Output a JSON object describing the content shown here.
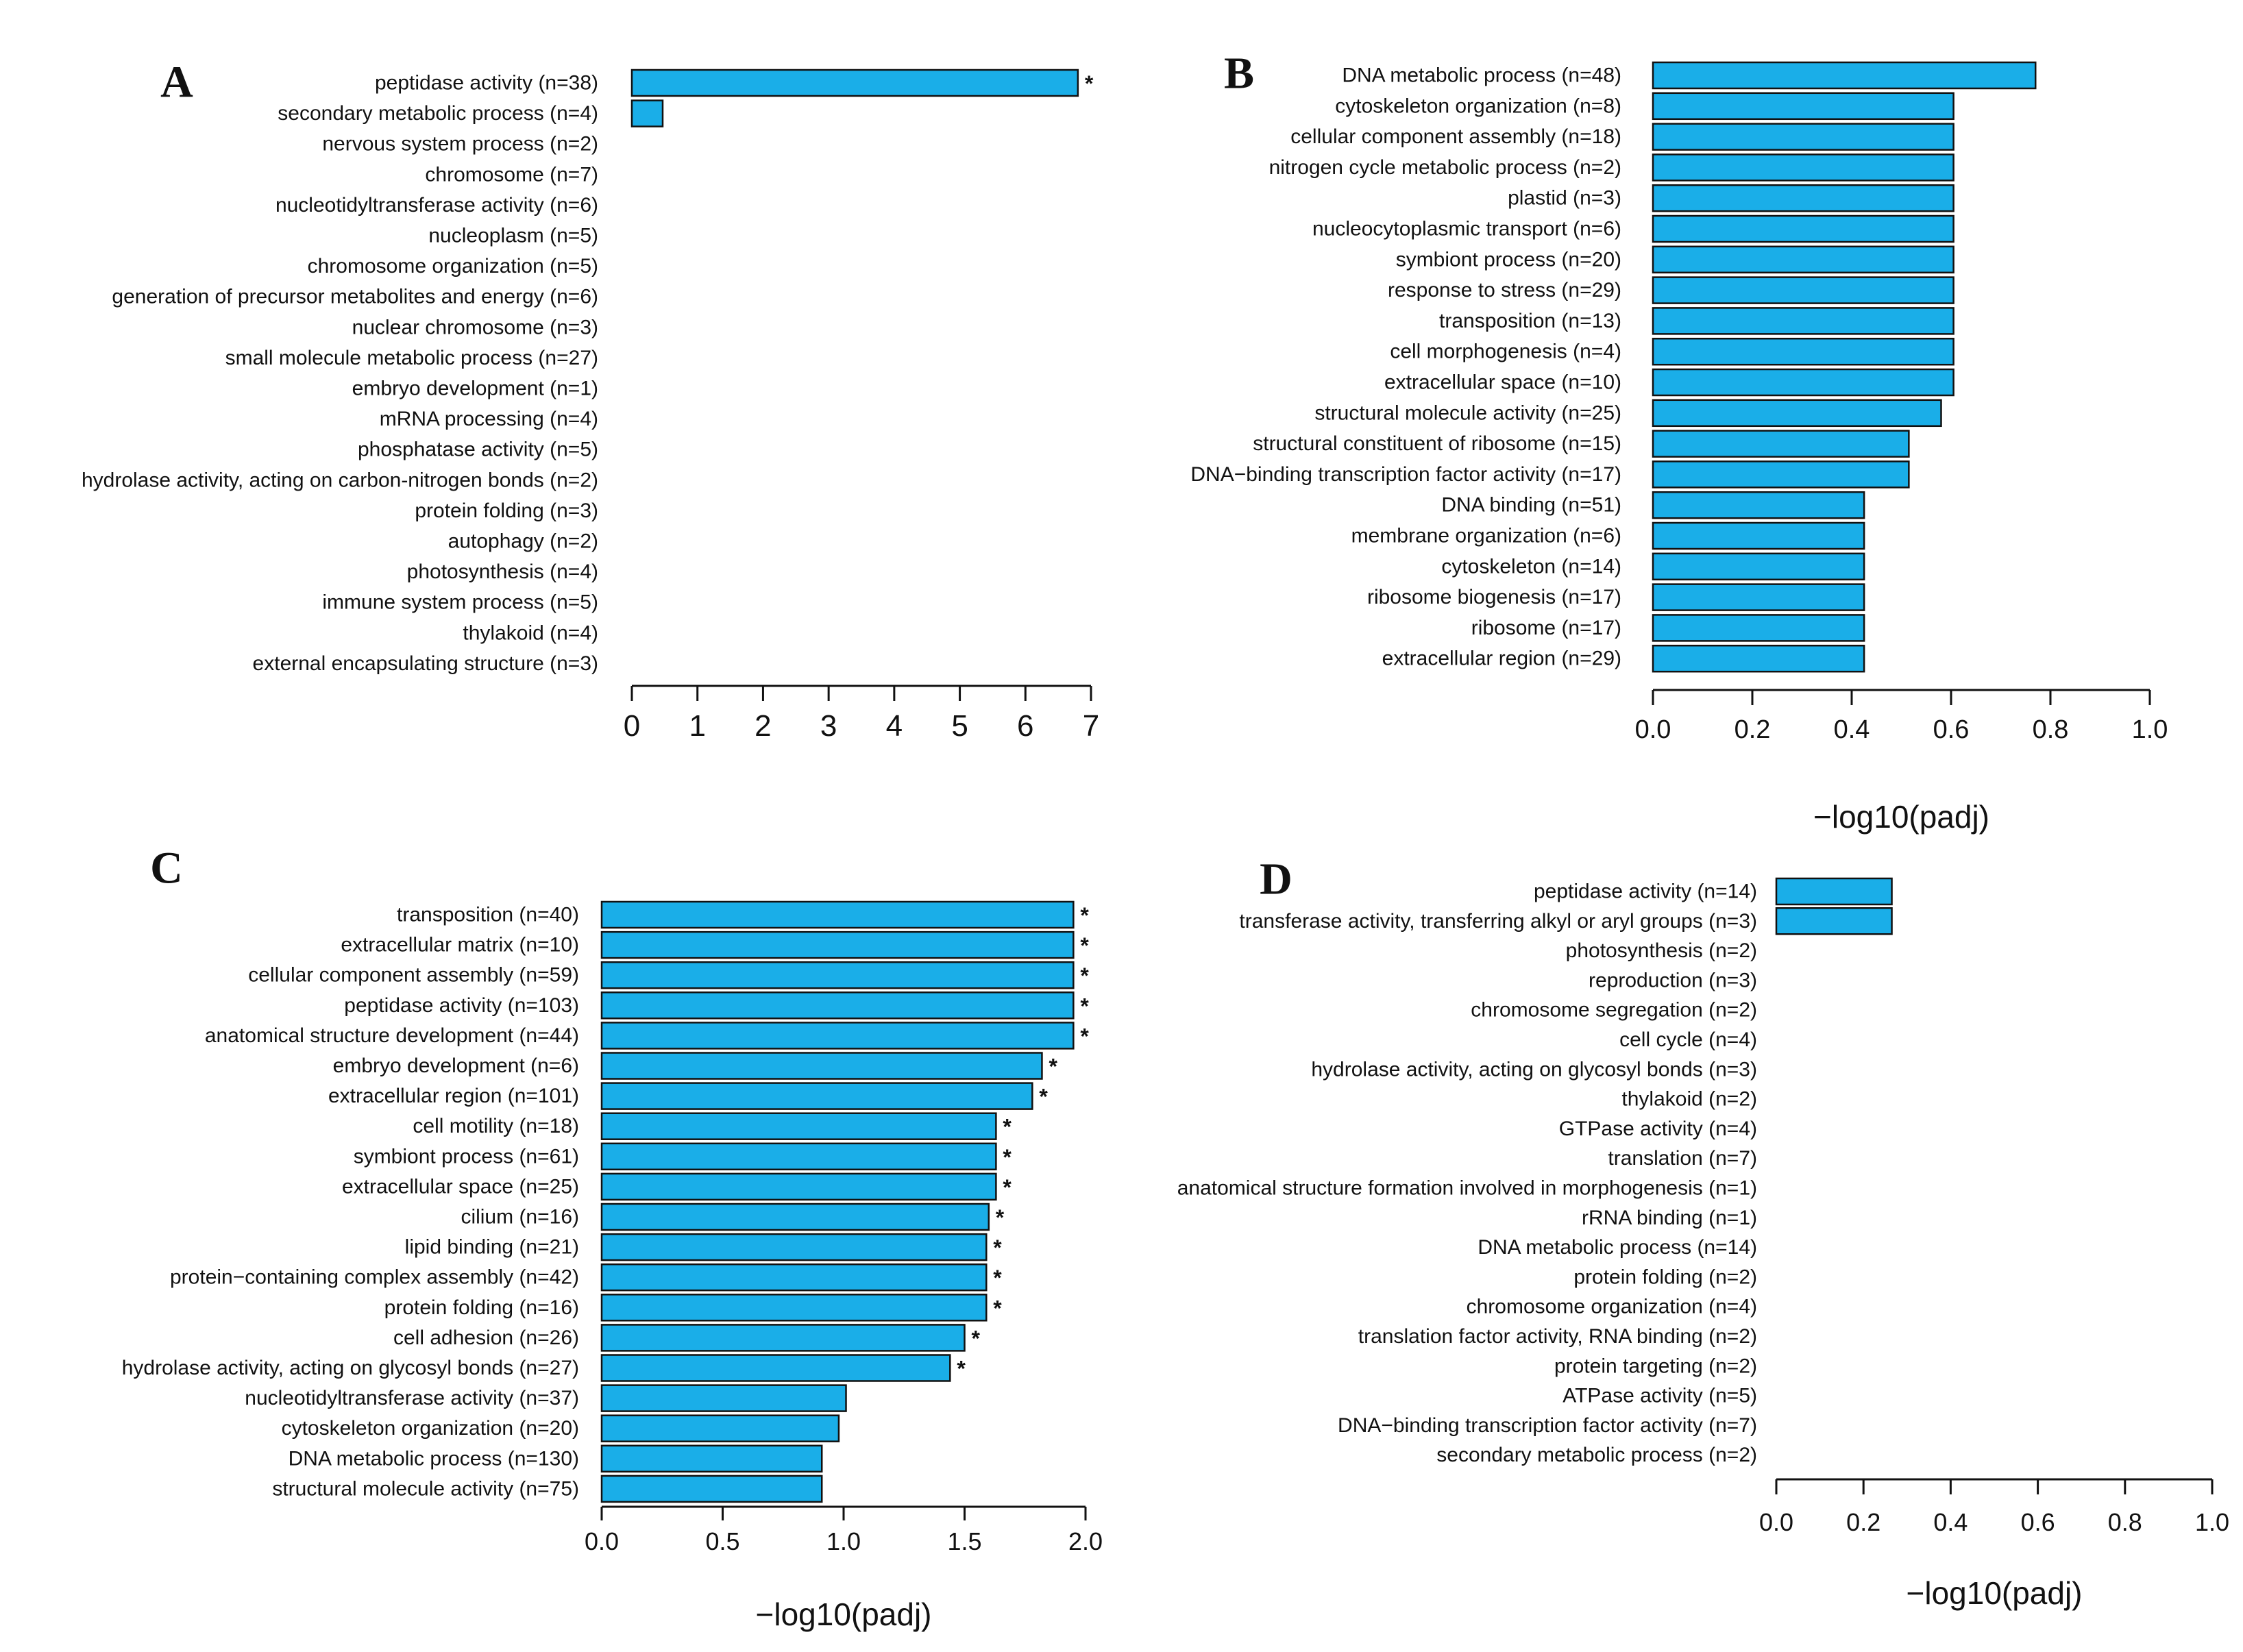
{
  "chart_data": [
    {
      "panel": "A",
      "type": "bar",
      "orientation": "horizontal",
      "xlabel": "",
      "xlim": [
        0,
        7
      ],
      "xticks": [
        0,
        1,
        2,
        3,
        4,
        5,
        6,
        7
      ],
      "color": "#1aaee8",
      "categories": [
        "peptidase activity (n=38)",
        "secondary metabolic process (n=4)",
        "nervous system process (n=2)",
        "chromosome (n=7)",
        "nucleotidyltransferase activity (n=6)",
        "nucleoplasm (n=5)",
        "chromosome organization (n=5)",
        "generation of precursor metabolites and energy (n=6)",
        "nuclear chromosome (n=3)",
        "small molecule metabolic process (n=27)",
        "embryo development (n=1)",
        "mRNA processing (n=4)",
        "phosphatase activity (n=5)",
        "hydrolase activity, acting on carbon-nitrogen bonds (n=2)",
        "protein folding (n=3)",
        "autophagy (n=2)",
        "photosynthesis (n=4)",
        "immune system process (n=5)",
        "thylakoid (n=4)",
        "external encapsulating structure (n=3)"
      ],
      "values": [
        6.8,
        0.47,
        0,
        0,
        0,
        0,
        0,
        0,
        0,
        0,
        0,
        0,
        0,
        0,
        0,
        0,
        0,
        0,
        0,
        0
      ],
      "significant": [
        true,
        false,
        false,
        false,
        false,
        false,
        false,
        false,
        false,
        false,
        false,
        false,
        false,
        false,
        false,
        false,
        false,
        false,
        false,
        false
      ]
    },
    {
      "panel": "B",
      "type": "bar",
      "orientation": "horizontal",
      "xlabel": "−log10(padj)",
      "xlim": [
        0,
        1
      ],
      "xticks": [
        "0.0",
        "0.2",
        "0.4",
        "0.6",
        "0.8",
        "1.0"
      ],
      "color": "#1aaee8",
      "categories": [
        "DNA metabolic process (n=48)",
        "cytoskeleton organization (n=8)",
        "cellular component assembly (n=18)",
        "nitrogen cycle metabolic process (n=2)",
        "plastid (n=3)",
        "nucleocytoplasmic transport (n=6)",
        "symbiont process (n=20)",
        "response to stress (n=29)",
        "transposition (n=13)",
        "cell morphogenesis (n=4)",
        "extracellular space (n=10)",
        "structural molecule activity (n=25)",
        "structural constituent of ribosome (n=15)",
        "DNA−binding transcription factor activity (n=17)",
        "DNA binding (n=51)",
        "membrane organization (n=6)",
        "cytoskeleton (n=14)",
        "ribosome biogenesis (n=17)",
        "ribosome (n=17)",
        "extracellular region (n=29)"
      ],
      "values": [
        0.77,
        0.605,
        0.605,
        0.605,
        0.605,
        0.605,
        0.605,
        0.605,
        0.605,
        0.605,
        0.605,
        0.58,
        0.515,
        0.515,
        0.425,
        0.425,
        0.425,
        0.425,
        0.425,
        0.425
      ],
      "significant": [
        false,
        false,
        false,
        false,
        false,
        false,
        false,
        false,
        false,
        false,
        false,
        false,
        false,
        false,
        false,
        false,
        false,
        false,
        false,
        false
      ]
    },
    {
      "panel": "C",
      "type": "bar",
      "orientation": "horizontal",
      "xlabel": "−log10(padj)",
      "xlim": [
        0,
        2
      ],
      "xticks": [
        "0.0",
        "0.5",
        "1.0",
        "1.5",
        "2.0"
      ],
      "color": "#1aaee8",
      "categories": [
        "transposition (n=40)",
        "extracellular matrix (n=10)",
        "cellular component assembly (n=59)",
        "peptidase activity (n=103)",
        "anatomical structure development (n=44)",
        "embryo development (n=6)",
        "extracellular region (n=101)",
        "cell motility (n=18)",
        "symbiont process (n=61)",
        "extracellular space (n=25)",
        "cilium (n=16)",
        "lipid binding (n=21)",
        "protein−containing complex assembly (n=42)",
        "protein folding (n=16)",
        "cell adhesion (n=26)",
        "hydrolase activity, acting on glycosyl bonds (n=27)",
        "nucleotidyltransferase activity (n=37)",
        "cytoskeleton organization (n=20)",
        "DNA metabolic process (n=130)",
        "structural molecule activity (n=75)"
      ],
      "values": [
        1.95,
        1.95,
        1.95,
        1.95,
        1.95,
        1.82,
        1.78,
        1.63,
        1.63,
        1.63,
        1.6,
        1.59,
        1.59,
        1.59,
        1.5,
        1.44,
        1.01,
        0.98,
        0.91,
        0.91
      ],
      "significant": [
        true,
        true,
        true,
        true,
        true,
        true,
        true,
        true,
        true,
        true,
        true,
        true,
        true,
        true,
        true,
        true,
        false,
        false,
        false,
        false
      ]
    },
    {
      "panel": "D",
      "type": "bar",
      "orientation": "horizontal",
      "xlabel": "−log10(padj)",
      "xlim": [
        0,
        1
      ],
      "xticks": [
        "0.0",
        "0.2",
        "0.4",
        "0.6",
        "0.8",
        "1.0"
      ],
      "color": "#1aaee8",
      "categories": [
        "peptidase activity (n=14)",
        "transferase activity, transferring alkyl or aryl groups (n=3)",
        "photosynthesis (n=2)",
        "reproduction (n=3)",
        "chromosome segregation (n=2)",
        "cell cycle (n=4)",
        "hydrolase activity, acting on glycosyl bonds (n=3)",
        "thylakoid (n=2)",
        "GTPase activity (n=4)",
        "translation (n=7)",
        "anatomical structure formation involved in morphogenesis (n=1)",
        "rRNA binding (n=1)",
        "DNA metabolic process (n=14)",
        "protein folding (n=2)",
        "chromosome organization (n=4)",
        "translation factor activity, RNA binding (n=2)",
        "protein targeting (n=2)",
        "ATPase activity (n=5)",
        "DNA−binding transcription factor activity (n=7)",
        "secondary metabolic process (n=2)"
      ],
      "values": [
        0.265,
        0.265,
        0,
        0,
        0,
        0,
        0,
        0,
        0,
        0,
        0,
        0,
        0,
        0,
        0,
        0,
        0,
        0,
        0,
        0
      ],
      "significant": [
        false,
        false,
        false,
        false,
        false,
        false,
        false,
        false,
        false,
        false,
        false,
        false,
        false,
        false,
        false,
        false,
        false,
        false,
        false,
        false
      ]
    }
  ]
}
